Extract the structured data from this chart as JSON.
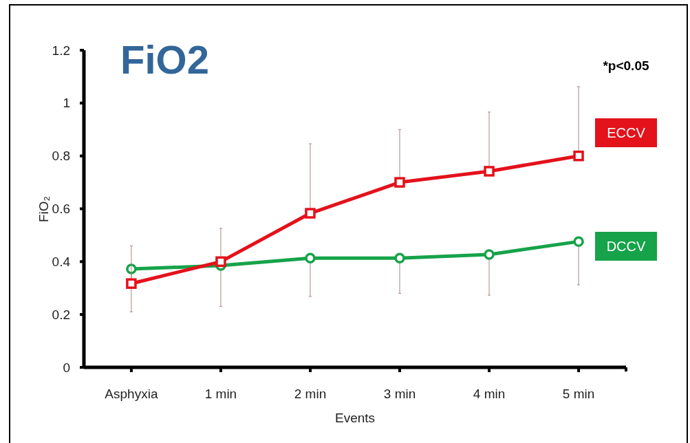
{
  "chart_data": {
    "type": "line",
    "title": "FiO2",
    "xlabel": "Events",
    "ylabel": "FiO₂",
    "categories": [
      "Asphyxia",
      "1 min",
      "2 min",
      "3 min",
      "4 min",
      "5 min"
    ],
    "series": [
      {
        "name": "ECCV",
        "color": "#e3121b",
        "marker": "square",
        "values": [
          0.317,
          0.4,
          0.583,
          0.7,
          0.742,
          0.8
        ],
        "errors": [
          [
            0.317,
            0.46
          ],
          [
            0.4,
            0.526
          ],
          [
            0.583,
            0.846
          ],
          [
            0.7,
            0.9
          ],
          [
            0.742,
            0.966
          ],
          [
            0.8,
            1.062
          ]
        ]
      },
      {
        "name": "DCCV",
        "color": "#16a34a",
        "marker": "circle",
        "values": [
          0.372,
          0.385,
          0.413,
          0.413,
          0.427,
          0.476
        ],
        "errors": [
          [
            0.21,
            0.372
          ],
          [
            0.23,
            0.385
          ],
          [
            0.268,
            0.413
          ],
          [
            0.28,
            0.413
          ],
          [
            0.273,
            0.427
          ],
          [
            0.312,
            0.476
          ]
        ]
      }
    ],
    "ylim": [
      0,
      1.2
    ],
    "yticks": [
      0,
      0.2,
      0.4,
      0.6,
      0.8,
      1,
      1.2
    ],
    "legend": "right",
    "grid": false,
    "line_style": "solid",
    "annotations": [
      "*p<0.05"
    ]
  }
}
